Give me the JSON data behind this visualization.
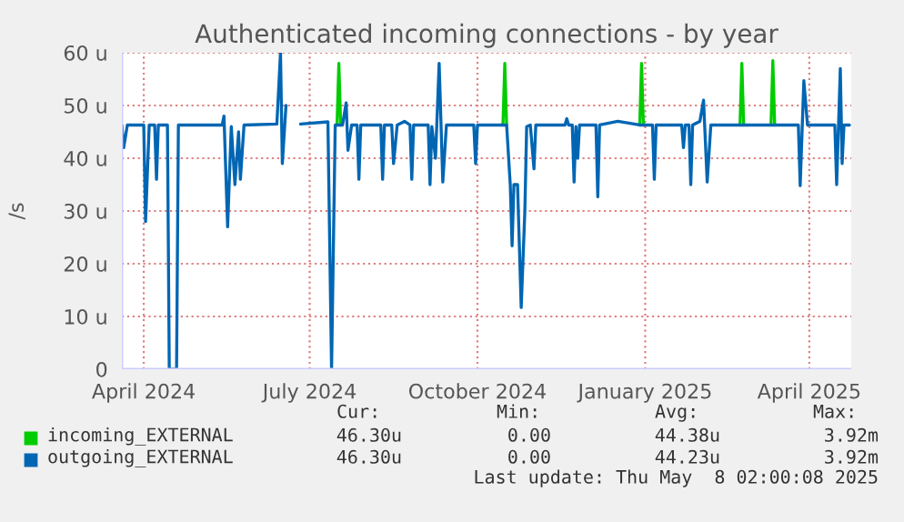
{
  "chart_data": {
    "type": "line",
    "title": "Authenticated incoming connections - by year",
    "ylabel": "/s",
    "xlim": [
      "2024-03-20",
      "2025-04-24"
    ],
    "xticks": [
      {
        "value": "2024-04-01",
        "label": "April 2024"
      },
      {
        "value": "2024-07-01",
        "label": "July 2024"
      },
      {
        "value": "2024-10-01",
        "label": "October 2024"
      },
      {
        "value": "2025-01-01",
        "label": "January 2025"
      },
      {
        "value": "2025-04-01",
        "label": "April 2025"
      }
    ],
    "ylim": [
      0,
      60
    ],
    "yticks": [
      0,
      {
        "value": 10,
        "label": "10 u"
      },
      {
        "value": 20,
        "label": "20 u"
      },
      {
        "value": 30,
        "label": "30 u"
      },
      {
        "value": 40,
        "label": "40 u"
      },
      {
        "value": 50,
        "label": "50 u"
      },
      {
        "value": 60,
        "label": "60 u"
      }
    ],
    "grid": true,
    "legend": "bottom left",
    "x": [
      "2024-03-20",
      "2024-03-21",
      "2024-03-23",
      "2024-04-01",
      "2024-04-02",
      "2024-04-04",
      "2024-04-07",
      "2024-04-08",
      "2024-04-09",
      "2024-04-14",
      "2024-04-15",
      "2024-04-19",
      "2024-04-20",
      "2024-05-14",
      "2024-05-15",
      "2024-05-17",
      "2024-05-19",
      "2024-05-21",
      "2024-05-23",
      "2024-05-24",
      "2024-05-26",
      "2024-06-13",
      "2024-06-15",
      "2024-06-16",
      "2024-06-18",
      "2024-06-19",
      "2024-06-26",
      "2024-07-11",
      "2024-07-13",
      "2024-07-15",
      "2024-07-17",
      "2024-07-19",
      "2024-07-21",
      "2024-07-22",
      "2024-07-24",
      "2024-07-27",
      "2024-07-28",
      "2024-07-29",
      "2024-08-09",
      "2024-08-10",
      "2024-08-11",
      "2024-08-15",
      "2024-08-16",
      "2024-08-18",
      "2024-08-22",
      "2024-08-25",
      "2024-08-26",
      "2024-08-27",
      "2024-09-04",
      "2024-09-05",
      "2024-09-06",
      "2024-09-08",
      "2024-09-10",
      "2024-09-12",
      "2024-09-14",
      "2024-09-29",
      "2024-09-30",
      "2024-10-01",
      "2024-10-15",
      "2024-10-16",
      "2024-10-17",
      "2024-10-19",
      "2024-10-20",
      "2024-10-21",
      "2024-10-23",
      "2024-10-25",
      "2024-10-27",
      "2024-10-28",
      "2024-10-30",
      "2024-11-01",
      "2024-11-02",
      "2024-11-18",
      "2024-11-19",
      "2024-11-20",
      "2024-11-22",
      "2024-11-23",
      "2024-11-24",
      "2024-11-25",
      "2024-11-26",
      "2024-12-05",
      "2024-12-06",
      "2024-12-07",
      "2024-12-17",
      "2024-12-29",
      "2024-12-30",
      "2024-12-31",
      "2025-01-05",
      "2025-01-06",
      "2025-01-07",
      "2025-01-21",
      "2025-01-22",
      "2025-01-23",
      "2025-01-25",
      "2025-01-26",
      "2025-01-27",
      "2025-01-31",
      "2025-02-02",
      "2025-02-04",
      "2025-02-06",
      "2025-02-23",
      "2025-03-12",
      "2025-03-26",
      "2025-03-27",
      "2025-03-29",
      "2025-03-31",
      "2025-04-15",
      "2025-04-16",
      "2025-04-18",
      "2025-04-19",
      "2025-04-20",
      "2025-04-23"
    ],
    "series": [
      {
        "name": "incoming_EXTERNAL",
        "color": "#00cc00",
        "x": [
          "2024-07-16",
          "2024-07-17",
          "2024-07-18",
          "2024-07-19",
          "2024-10-15",
          "2024-10-16",
          "2024-10-17",
          "2024-10-18",
          "2024-12-29",
          "2024-12-30",
          "2024-12-31",
          "2025-01-01",
          "2025-02-22",
          "2025-02-23",
          "2025-02-24",
          "2025-02-25",
          "2025-03-11",
          "2025-03-12",
          "2025-03-13"
        ],
        "values": [
          46.3,
          58,
          46.3,
          null,
          46.3,
          58,
          46.3,
          null,
          46.3,
          58,
          46.3,
          null,
          46.3,
          58,
          46.3,
          null,
          46.3,
          58.5,
          46.3
        ]
      },
      {
        "name": "outgoing_EXTERNAL",
        "color": "#0066b3",
        "values": [
          46.3,
          42,
          46.3,
          46.3,
          28,
          46.3,
          46.3,
          36,
          46.3,
          46.3,
          0,
          0,
          46.3,
          46.3,
          48,
          27,
          46,
          35,
          45,
          36,
          46.3,
          46.5,
          60,
          39,
          50,
          null,
          46.5,
          46.9,
          0,
          46.3,
          46.3,
          46.3,
          50.5,
          41.5,
          46.3,
          46.3,
          36,
          46.3,
          46.3,
          36,
          46.3,
          46.3,
          39,
          46.3,
          47,
          46.3,
          36,
          46.3,
          46.3,
          35,
          46,
          40,
          58,
          35.5,
          46.3,
          46.3,
          39,
          46.3,
          46.3,
          46.3,
          46.3,
          35,
          23.4,
          35,
          35,
          11.7,
          30,
          46,
          46.3,
          38,
          46.3,
          46.3,
          47.5,
          46.3,
          46.3,
          35.5,
          46,
          40,
          46.3,
          46.3,
          32.7,
          46.3,
          47,
          46.3,
          46.3,
          46.3,
          46.3,
          36,
          46.3,
          46.3,
          42,
          46.3,
          46.3,
          35,
          46.3,
          47,
          51,
          35.5,
          46.3,
          46.3,
          46.3,
          46.3,
          34.8,
          54.7,
          46.3,
          46.3,
          35,
          57,
          39,
          46.3,
          46.3
        ]
      }
    ],
    "annotations": [
      "Cur:",
      "Min:",
      "Avg:",
      "Max:",
      "46.30u",
      "0.00",
      "44.38u",
      "3.92m",
      "46.30u",
      "0.00",
      "44.23u",
      "3.92m",
      "Last update: Thu May  8 02:00:08 2025"
    ]
  }
}
